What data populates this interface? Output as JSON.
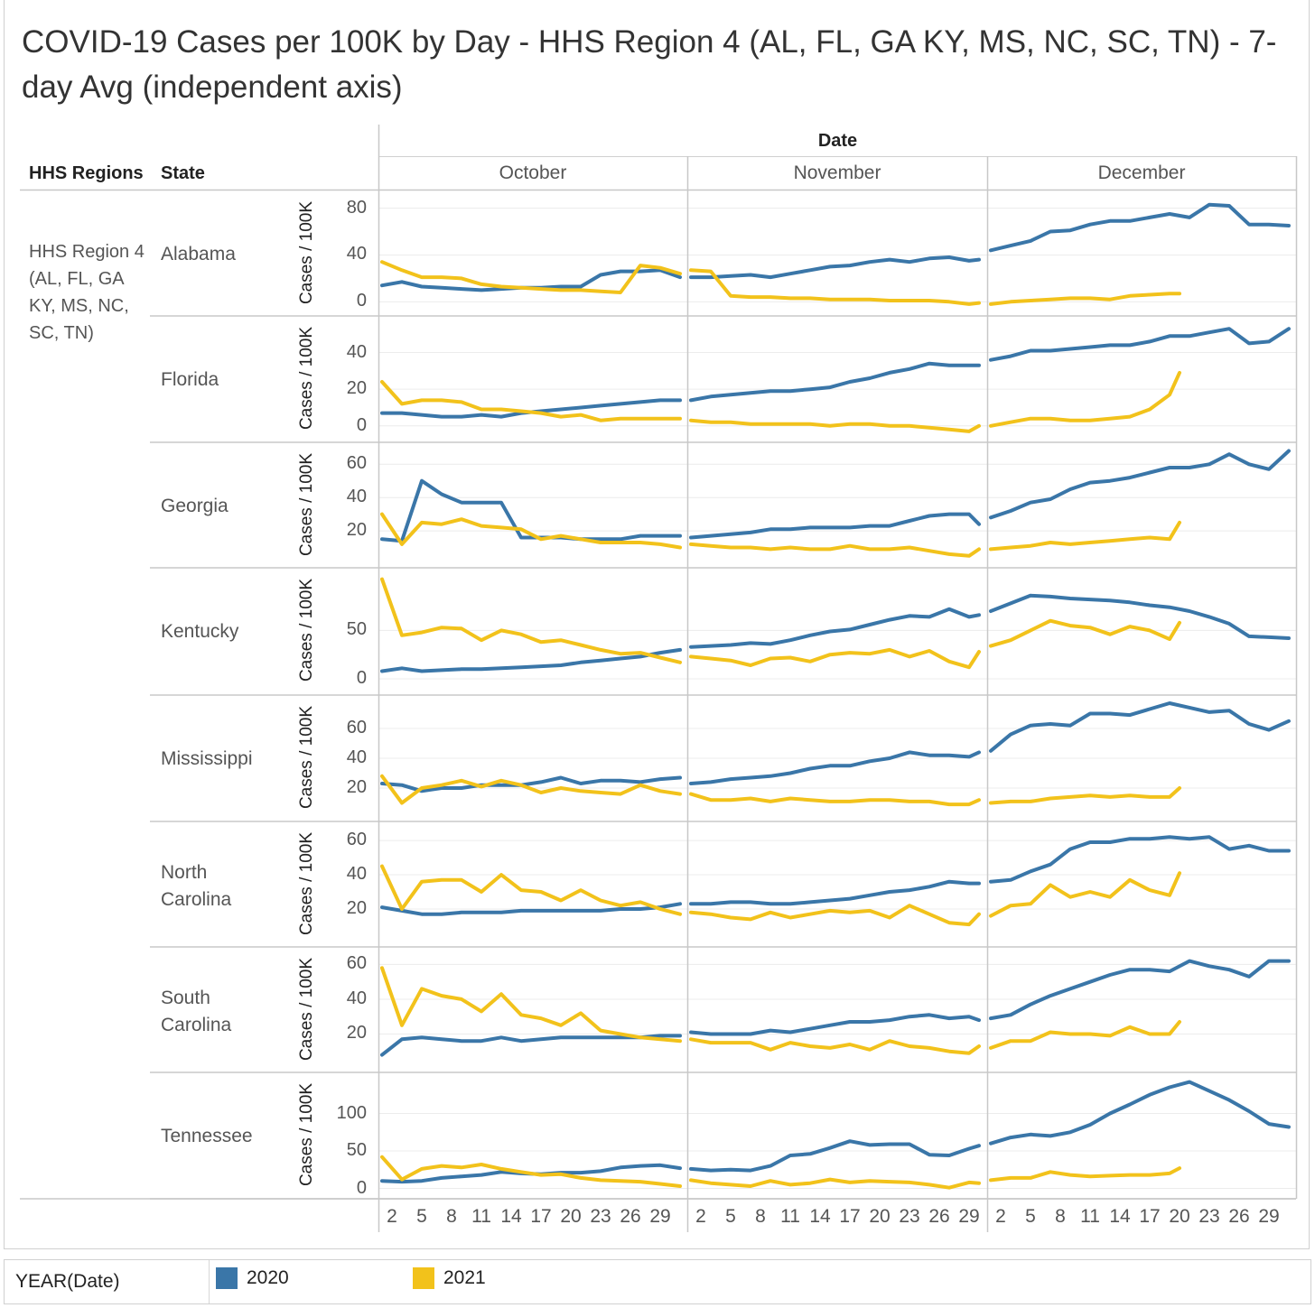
{
  "title": "COVID-19 Cases per 100K by Day - HHS Region 4 (AL, FL, GA KY, MS, NC, SC, TN) - 7-day Avg (independent axis)",
  "headers": {
    "regions": "HHS Regions",
    "state": "State",
    "date": "Date"
  },
  "region_label": "HHS Region 4 (AL, FL, GA KY, MS, NC, SC, TN)",
  "legend": {
    "title": "YEAR(Date)",
    "items": [
      {
        "label": "2020",
        "color": "#3a76a8"
      },
      {
        "label": "2021",
        "color": "#f2c21b"
      }
    ]
  },
  "chart_data": {
    "type": "line",
    "title": "COVID-19 Cases per 100K by Day - HHS Region 4 (AL, FL, GA KY, MS, NC, SC, TN) - 7-day Avg (independent axis)",
    "xlabel": "Date",
    "ylabel": "Cases / 100K",
    "months": [
      "October",
      "November",
      "December"
    ],
    "x_tick_labels": [
      "2",
      "5",
      "8",
      "11",
      "14",
      "17",
      "20",
      "23",
      "26",
      "29"
    ],
    "sample_days": {
      "October": [
        1,
        3,
        5,
        7,
        9,
        11,
        13,
        15,
        17,
        19,
        21,
        23,
        25,
        27,
        29,
        31
      ],
      "November": [
        1,
        3,
        5,
        7,
        9,
        11,
        13,
        15,
        17,
        19,
        21,
        23,
        25,
        27,
        29,
        30
      ],
      "December": [
        1,
        3,
        5,
        7,
        9,
        11,
        13,
        15,
        17,
        19,
        21,
        23,
        25,
        27,
        29,
        31
      ],
      "December_2021": [
        1,
        3,
        5,
        7,
        9,
        11,
        13,
        15,
        17,
        19,
        20
      ]
    },
    "grid": true,
    "legend_position": "bottom",
    "rows": [
      {
        "state": "Alabama",
        "ylim": [
          -9,
          92
        ],
        "yticks": [
          "0",
          "40",
          "80"
        ],
        "series": {
          "2020": {
            "October": [
              14,
              17,
              13,
              12,
              11,
              10,
              11,
              12,
              12,
              13,
              13,
              23,
              26,
              26,
              27,
              21
            ],
            "November": [
              21,
              21,
              22,
              23,
              21,
              24,
              27,
              30,
              31,
              34,
              36,
              34,
              37,
              38,
              35,
              36
            ],
            "December": [
              44,
              48,
              52,
              60,
              61,
              66,
              69,
              69,
              72,
              75,
              72,
              83,
              82,
              66,
              66,
              65
            ]
          },
          "2021": {
            "October": [
              34,
              27,
              21,
              21,
              20,
              15,
              13,
              12,
              11,
              10,
              10,
              9,
              8,
              31,
              29,
              24
            ],
            "November": [
              27,
              26,
              5,
              4,
              4,
              3,
              3,
              2,
              2,
              2,
              1,
              1,
              1,
              0,
              -2,
              -1
            ],
            "December": [
              -2,
              0,
              1,
              2,
              3,
              3,
              2,
              5,
              6,
              7,
              7
            ]
          }
        }
      },
      {
        "state": "Florida",
        "ylim": [
          -7,
          58
        ],
        "yticks": [
          "0",
          "20",
          "40"
        ],
        "series": {
          "2020": {
            "October": [
              7,
              7,
              6,
              5,
              5,
              6,
              5,
              7,
              8,
              9,
              10,
              11,
              12,
              13,
              14,
              14
            ],
            "November": [
              14,
              16,
              17,
              18,
              19,
              19,
              20,
              21,
              24,
              26,
              29,
              31,
              34,
              33,
              33,
              33
            ],
            "December": [
              36,
              38,
              41,
              41,
              42,
              43,
              44,
              44,
              46,
              49,
              49,
              51,
              53,
              45,
              46,
              53
            ]
          },
          "2021": {
            "October": [
              24,
              12,
              14,
              14,
              13,
              9,
              9,
              8,
              7,
              5,
              6,
              3,
              4,
              4,
              4,
              4
            ],
            "November": [
              3,
              2,
              2,
              1,
              1,
              1,
              1,
              0,
              1,
              1,
              0,
              0,
              -1,
              -2,
              -3,
              0
            ],
            "December": [
              0,
              2,
              4,
              4,
              3,
              3,
              4,
              5,
              9,
              17,
              29
            ]
          }
        }
      },
      {
        "state": "Georgia",
        "ylim": [
          0,
          71
        ],
        "yticks": [
          "20",
          "40",
          "60"
        ],
        "series": {
          "2020": {
            "October": [
              15,
              14,
              50,
              42,
              37,
              37,
              37,
              16,
              16,
              16,
              15,
              15,
              15,
              17,
              17,
              17
            ],
            "November": [
              16,
              17,
              18,
              19,
              21,
              21,
              22,
              22,
              22,
              23,
              23,
              26,
              29,
              30,
              30,
              24
            ],
            "December": [
              28,
              32,
              37,
              39,
              45,
              49,
              50,
              52,
              55,
              58,
              58,
              60,
              66,
              60,
              57,
              68
            ]
          },
          "2021": {
            "October": [
              30,
              12,
              25,
              24,
              27,
              23,
              22,
              21,
              15,
              17,
              15,
              13,
              13,
              13,
              12,
              10
            ],
            "November": [
              12,
              11,
              10,
              10,
              9,
              10,
              9,
              9,
              11,
              9,
              9,
              10,
              8,
              6,
              5,
              9
            ],
            "December": [
              9,
              10,
              11,
              13,
              12,
              13,
              14,
              15,
              16,
              15,
              25
            ]
          }
        }
      },
      {
        "state": "Kentucky",
        "ylim": [
          -13,
          111
        ],
        "yticks": [
          "0",
          "50"
        ],
        "series": {
          "2020": {
            "October": [
              8,
              11,
              8,
              9,
              10,
              10,
              11,
              12,
              13,
              14,
              17,
              19,
              21,
              23,
              27,
              30
            ],
            "November": [
              33,
              34,
              35,
              37,
              36,
              40,
              45,
              49,
              51,
              56,
              61,
              65,
              64,
              72,
              64,
              66
            ],
            "December": [
              70,
              78,
              86,
              85,
              83,
              82,
              81,
              79,
              76,
              74,
              70,
              64,
              57,
              44,
              43,
              42
            ]
          },
          "2021": {
            "October": [
              103,
              45,
              48,
              53,
              52,
              40,
              50,
              46,
              38,
              40,
              35,
              30,
              26,
              27,
              22,
              17
            ],
            "November": [
              23,
              21,
              19,
              14,
              21,
              22,
              18,
              25,
              27,
              26,
              30,
              23,
              29,
              18,
              12,
              28
            ],
            "December": [
              34,
              40,
              50,
              60,
              55,
              53,
              46,
              54,
              50,
              41,
              58
            ]
          }
        }
      },
      {
        "state": "Mississippi",
        "ylim": [
          0,
          80
        ],
        "yticks": [
          "20",
          "40",
          "60"
        ],
        "series": {
          "2020": {
            "October": [
              23,
              22,
              18,
              20,
              20,
              22,
              22,
              22,
              24,
              27,
              23,
              25,
              25,
              24,
              26,
              27
            ],
            "November": [
              23,
              24,
              26,
              27,
              28,
              30,
              33,
              35,
              35,
              38,
              40,
              44,
              42,
              42,
              41,
              44
            ],
            "December": [
              45,
              56,
              62,
              63,
              62,
              70,
              70,
              69,
              73,
              77,
              74,
              71,
              72,
              63,
              59,
              65
            ]
          },
          "2021": {
            "October": [
              28,
              10,
              20,
              22,
              25,
              21,
              25,
              22,
              17,
              20,
              18,
              17,
              16,
              22,
              18,
              16
            ],
            "November": [
              16,
              12,
              12,
              13,
              11,
              13,
              12,
              11,
              11,
              12,
              12,
              11,
              11,
              9,
              9,
              12
            ],
            "December": [
              10,
              11,
              11,
              13,
              14,
              15,
              14,
              15,
              14,
              14,
              20
            ]
          }
        }
      },
      {
        "state": "North Carolina",
        "ylim": [
          0,
          69
        ],
        "yticks": [
          "20",
          "40",
          "60"
        ],
        "series": {
          "2020": {
            "October": [
              21,
              19,
              17,
              17,
              18,
              18,
              18,
              19,
              19,
              19,
              19,
              19,
              20,
              20,
              21,
              23
            ],
            "November": [
              23,
              23,
              24,
              24,
              23,
              23,
              24,
              25,
              26,
              28,
              30,
              31,
              33,
              36,
              35,
              35
            ],
            "December": [
              36,
              37,
              42,
              46,
              55,
              59,
              59,
              61,
              61,
              62,
              61,
              62,
              55,
              57,
              54,
              54
            ]
          },
          "2021": {
            "October": [
              45,
              20,
              36,
              37,
              37,
              30,
              40,
              31,
              30,
              25,
              31,
              25,
              22,
              24,
              20,
              17
            ],
            "November": [
              18,
              17,
              15,
              14,
              18,
              15,
              17,
              19,
              18,
              19,
              15,
              22,
              17,
              12,
              11,
              17
            ],
            "December": [
              16,
              22,
              23,
              34,
              27,
              30,
              27,
              37,
              31,
              28,
              41
            ]
          }
        }
      },
      {
        "state": "South Carolina",
        "ylim": [
          0,
          68
        ],
        "yticks": [
          "20",
          "40",
          "60"
        ],
        "series": {
          "2020": {
            "October": [
              8,
              17,
              18,
              17,
              16,
              16,
              18,
              16,
              17,
              18,
              18,
              18,
              18,
              18,
              19,
              19
            ],
            "November": [
              21,
              20,
              20,
              20,
              22,
              21,
              23,
              25,
              27,
              27,
              28,
              30,
              31,
              29,
              30,
              28
            ],
            "December": [
              29,
              31,
              37,
              42,
              46,
              50,
              54,
              57,
              57,
              56,
              62,
              59,
              57,
              53,
              62,
              62
            ]
          },
          "2021": {
            "October": [
              58,
              25,
              46,
              42,
              40,
              33,
              43,
              31,
              29,
              25,
              32,
              22,
              20,
              18,
              17,
              16
            ],
            "November": [
              17,
              15,
              15,
              15,
              11,
              15,
              13,
              12,
              14,
              11,
              16,
              13,
              12,
              10,
              9,
              13
            ],
            "December": [
              12,
              16,
              16,
              21,
              20,
              20,
              19,
              24,
              20,
              20,
              27
            ]
          }
        }
      },
      {
        "state": "Tennessee",
        "ylim": [
          -9,
          150
        ],
        "yticks": [
          "0",
          "50",
          "100"
        ],
        "series": {
          "2020": {
            "October": [
              10,
              9,
              10,
              14,
              16,
              18,
              22,
              20,
              19,
              21,
              21,
              23,
              28,
              30,
              31,
              27
            ],
            "November": [
              26,
              24,
              25,
              24,
              30,
              44,
              46,
              54,
              63,
              58,
              59,
              59,
              45,
              44,
              53,
              57
            ],
            "December": [
              60,
              68,
              72,
              70,
              75,
              85,
              100,
              112,
              125,
              135,
              142,
              130,
              118,
              103,
              86,
              82
            ]
          },
          "2021": {
            "October": [
              42,
              12,
              26,
              30,
              28,
              32,
              26,
              22,
              18,
              19,
              14,
              11,
              10,
              9,
              6,
              3
            ],
            "November": [
              11,
              7,
              5,
              3,
              10,
              5,
              7,
              12,
              8,
              10,
              9,
              8,
              5,
              1,
              8,
              7
            ],
            "December": [
              11,
              14,
              14,
              22,
              18,
              16,
              17,
              18,
              18,
              20,
              27
            ]
          }
        }
      }
    ]
  }
}
